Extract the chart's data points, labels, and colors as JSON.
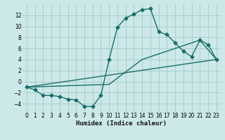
{
  "xlabel": "Humidex (Indice chaleur)",
  "background_color": "#cce8e8",
  "grid_color": "#aacece",
  "line_color": "#1a6e6a",
  "xlim": [
    -0.5,
    23.5
  ],
  "ylim": [
    -5.5,
    14.0
  ],
  "yticks": [
    -4,
    -2,
    0,
    2,
    4,
    6,
    8,
    10,
    12
  ],
  "xticks": [
    0,
    1,
    2,
    3,
    4,
    5,
    6,
    7,
    8,
    9,
    10,
    11,
    12,
    13,
    14,
    15,
    16,
    17,
    18,
    19,
    20,
    21,
    22,
    23
  ],
  "line1_x": [
    0,
    1,
    2,
    3,
    4,
    5,
    6,
    7,
    8,
    9,
    10,
    11,
    12,
    13,
    14,
    15,
    16,
    17,
    18,
    19,
    20,
    21,
    22,
    23
  ],
  "line1_y": [
    -1,
    -1.5,
    -2.5,
    -2.5,
    -2.7,
    -3.2,
    -3.3,
    -4.5,
    -4.5,
    -2.5,
    4,
    9.8,
    11.5,
    12.2,
    13,
    13.2,
    9,
    8.5,
    7,
    5.5,
    4.5,
    7.5,
    6.7,
    4
  ],
  "line2_x": [
    0,
    23
  ],
  "line2_y": [
    -1,
    4
  ],
  "line3_x": [
    0,
    10,
    14,
    21,
    23
  ],
  "line3_y": [
    -1,
    -0.5,
    4,
    7.5,
    4
  ],
  "markersize": 2.5,
  "linewidth": 1.0,
  "tick_fontsize": 5.5,
  "xlabel_fontsize": 6.5
}
